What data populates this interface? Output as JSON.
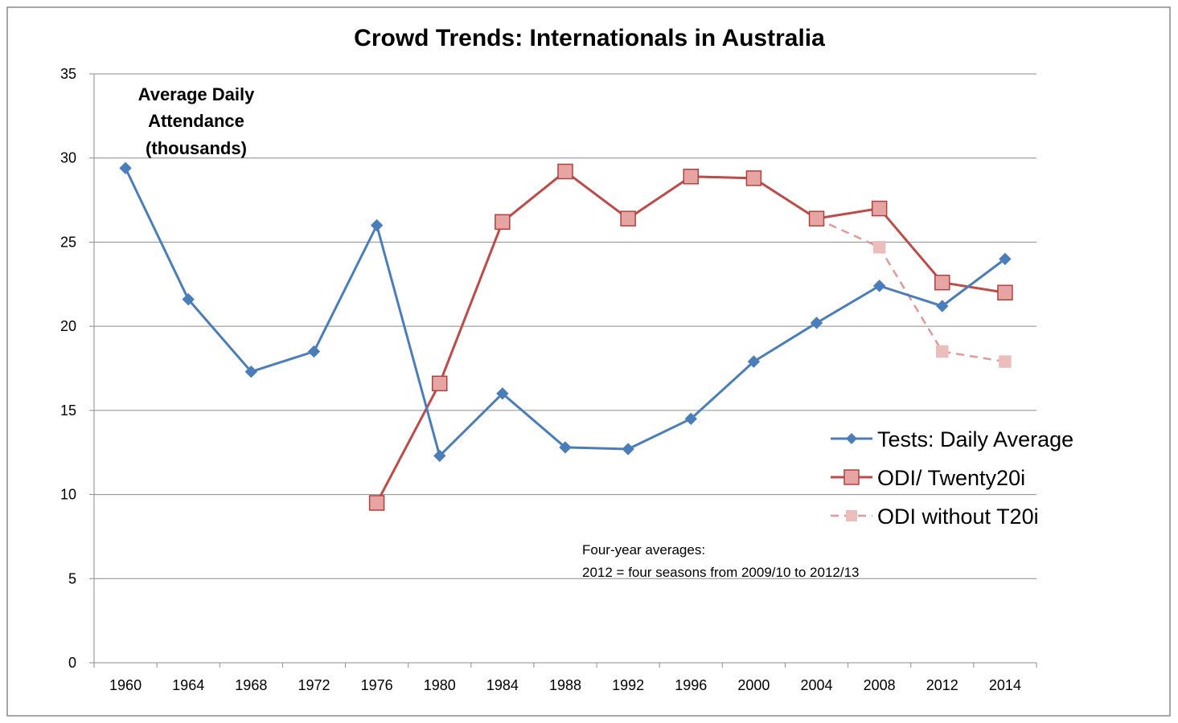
{
  "chart_data": {
    "type": "line",
    "title": "Crowd Trends: Internationals in Australia",
    "ylabel_lines": [
      "Average Daily",
      "Attendance",
      "(thousands)"
    ],
    "xlabel": "",
    "categories": [
      "1960",
      "1964",
      "1968",
      "1972",
      "1976",
      "1980",
      "1984",
      "1988",
      "1992",
      "1996",
      "2000",
      "2004",
      "2008",
      "2012",
      "2014"
    ],
    "ylim": [
      0,
      35
    ],
    "yticks": [
      0,
      5,
      10,
      15,
      20,
      25,
      30,
      35
    ],
    "grid": true,
    "legend_position": "right",
    "series": [
      {
        "name": "Tests: Daily Average",
        "color": "#4a7ebb",
        "marker": "diamond",
        "dash": false,
        "values": [
          29.4,
          21.6,
          17.3,
          18.5,
          26.0,
          12.3,
          16.0,
          12.8,
          12.7,
          14.5,
          17.9,
          20.2,
          22.4,
          21.2,
          24.0
        ]
      },
      {
        "name": "ODI/ Twenty20i",
        "color": "#be4b48",
        "marker": "square",
        "dash": false,
        "values": [
          null,
          null,
          null,
          null,
          9.5,
          16.6,
          26.2,
          29.2,
          26.4,
          28.9,
          28.8,
          26.4,
          27.0,
          22.6,
          22.0
        ]
      },
      {
        "name": "ODI without T20i",
        "color": "#e6b9b8",
        "marker": "square",
        "dash": true,
        "values": [
          null,
          null,
          null,
          null,
          null,
          null,
          null,
          null,
          null,
          null,
          null,
          26.4,
          24.7,
          18.5,
          17.9
        ]
      }
    ],
    "annotation_lines": [
      "Four-year averages:",
      "2012 = four seasons from 2009/10 to 2012/13"
    ]
  }
}
